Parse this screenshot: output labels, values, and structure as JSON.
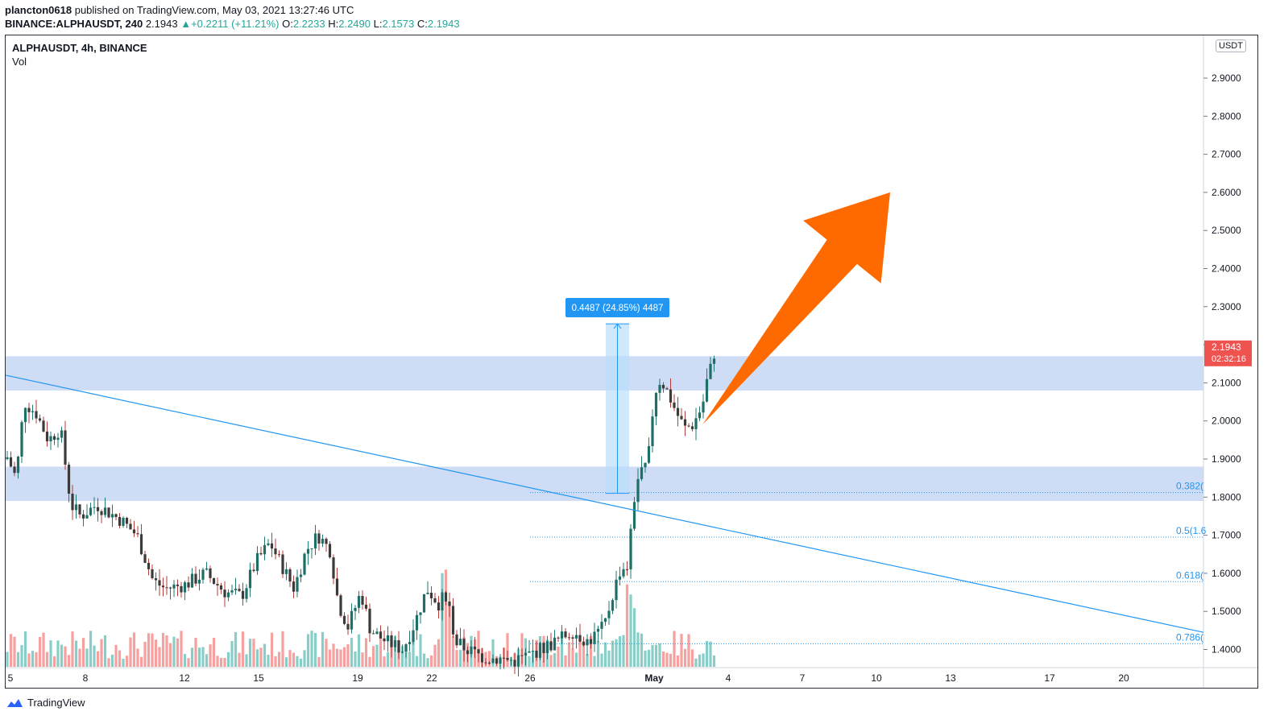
{
  "header": {
    "author": "plancton0618",
    "published_text": "published on TradingView.com, May 03, 2021 13:27:46 UTC",
    "symbol_line": "BINANCE:ALPHAUSDT, 240",
    "last": "2.1943",
    "change": "+0.2211 (+11.21%)",
    "open_label": "O:",
    "open": "2.2233",
    "high_label": "H:",
    "high": "2.2490",
    "low_label": "L:",
    "low": "2.1573",
    "close_label": "C:",
    "close": "2.1943"
  },
  "legend": {
    "title": "ALPHAUSDT, 4h, BINANCE",
    "volume": "Vol"
  },
  "currency_badge": "USDT",
  "price_badge": {
    "price": "2.1943",
    "countdown": "02:32:16"
  },
  "measure_label": "0.4487 (24.85%) 4487",
  "footer": {
    "brand": "TradingView"
  },
  "colors": {
    "up": "#26a69a",
    "down": "#ef5350",
    "zone": "#c6d6f5",
    "trend": "#2196f3",
    "arrow": "#ff6a00"
  },
  "chart_data": {
    "type": "candlestick",
    "y_axis": {
      "ticks": [
        "1.4000",
        "1.5000",
        "1.6000",
        "1.7000",
        "1.8000",
        "1.9000",
        "2.0000",
        "2.1000",
        "2.2000",
        "2.3000",
        "2.4000",
        "2.5000",
        "2.6000",
        "2.7000",
        "2.8000",
        "2.9000"
      ],
      "range": [
        1.35,
        3.0
      ]
    },
    "x_axis": {
      "ticks": [
        "5",
        "8",
        "12",
        "15",
        "19",
        "22",
        "26",
        "May",
        "4",
        "7",
        "10",
        "13",
        "17",
        "20"
      ]
    },
    "zones": [
      {
        "low": 2.08,
        "high": 2.17
      },
      {
        "low": 1.79,
        "high": 1.88
      }
    ],
    "fib_levels": [
      {
        "label": "0.382(",
        "price": 1.812
      },
      {
        "label": "0.5(1.6",
        "price": 1.695
      },
      {
        "label": "0.618(",
        "price": 1.578
      },
      {
        "label": "0.786(",
        "price": 1.415
      }
    ],
    "trendline": {
      "from": {
        "date": "Apr 05",
        "price": 2.12
      },
      "to": {
        "date": "May 24",
        "price": 1.445
      }
    },
    "measure": {
      "from": 1.81,
      "to": 2.255
    },
    "arrow": {
      "from": 1.99,
      "to": 2.6
    }
  }
}
